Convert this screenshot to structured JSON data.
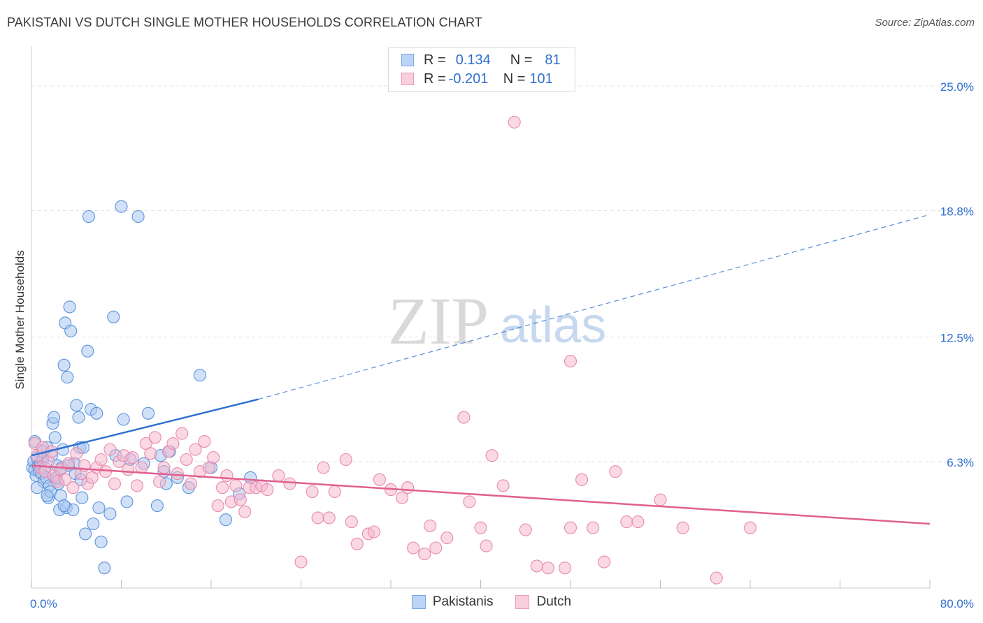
{
  "header": {
    "title": "PAKISTANI VS DUTCH SINGLE MOTHER HOUSEHOLDS CORRELATION CHART",
    "source": "Source: ZipAtlas.com"
  },
  "watermark": {
    "zip": "ZIP",
    "atlas": "atlas"
  },
  "legend": {
    "rows": [
      {
        "r_label": "R =",
        "r_value": "0.134",
        "n_label": "N =",
        "n_value": "81"
      },
      {
        "r_label": "R =",
        "r_value": "-0.201",
        "n_label": "N =",
        "n_value": "101"
      }
    ]
  },
  "bottom_legend": {
    "items": [
      "Pakistanis",
      "Dutch"
    ]
  },
  "colors": {
    "blue": "#2f6fd0",
    "blue_fill": "#a9c7f0",
    "pink": "#e0608f",
    "pink_fill": "#f5b8cd",
    "grid": "#e3e3e3"
  },
  "chart_data": {
    "type": "scatter",
    "title": "PAKISTANI VS DUTCH SINGLE MOTHER HOUSEHOLDS CORRELATION CHART",
    "xlabel": "",
    "ylabel": "Single Mother Households",
    "xlim": [
      0,
      80
    ],
    "ylim": [
      0,
      26.5
    ],
    "x_tick_labels": [
      "0.0%",
      "80.0%"
    ],
    "y_ticks": [
      6.3,
      12.5,
      18.8,
      25.0
    ],
    "y_tick_labels": [
      "6.3%",
      "12.5%",
      "18.8%",
      "25.0%"
    ],
    "series": [
      {
        "name": "Pakistanis",
        "r": 0.134,
        "n": 81,
        "trend": {
          "x0": 0,
          "y0": 6.6,
          "x1": 20.2,
          "y1": 9.4,
          "dash_x1": 80,
          "dash_y1": 18.6
        },
        "points": [
          [
            0.1,
            6.0
          ],
          [
            0.2,
            6.3
          ],
          [
            0.3,
            5.9
          ],
          [
            0.4,
            5.6
          ],
          [
            0.5,
            6.5
          ],
          [
            0.6,
            6.1
          ],
          [
            0.7,
            5.8
          ],
          [
            0.8,
            6.2
          ],
          [
            0.9,
            5.7
          ],
          [
            1.0,
            6.4
          ],
          [
            1.1,
            5.3
          ],
          [
            1.2,
            6.0
          ],
          [
            1.3,
            5.5
          ],
          [
            1.4,
            7.0
          ],
          [
            1.5,
            4.5
          ],
          [
            1.6,
            5.1
          ],
          [
            1.7,
            4.8
          ],
          [
            1.8,
            6.6
          ],
          [
            1.9,
            8.2
          ],
          [
            2.0,
            8.5
          ],
          [
            2.1,
            7.5
          ],
          [
            2.2,
            5.4
          ],
          [
            2.3,
            6.1
          ],
          [
            2.4,
            5.2
          ],
          [
            2.5,
            3.9
          ],
          [
            2.6,
            4.6
          ],
          [
            2.7,
            6.0
          ],
          [
            2.8,
            6.9
          ],
          [
            2.9,
            11.1
          ],
          [
            3.0,
            13.2
          ],
          [
            3.1,
            4.0
          ],
          [
            3.2,
            10.5
          ],
          [
            3.4,
            14.0
          ],
          [
            3.5,
            12.8
          ],
          [
            3.7,
            3.9
          ],
          [
            3.8,
            6.2
          ],
          [
            4.0,
            9.1
          ],
          [
            4.2,
            8.5
          ],
          [
            4.3,
            7.0
          ],
          [
            4.5,
            4.5
          ],
          [
            4.6,
            7.0
          ],
          [
            4.8,
            2.7
          ],
          [
            5.0,
            11.8
          ],
          [
            5.1,
            18.5
          ],
          [
            5.3,
            8.9
          ],
          [
            5.5,
            3.2
          ],
          [
            5.8,
            8.7
          ],
          [
            6.0,
            4.0
          ],
          [
            6.2,
            2.3
          ],
          [
            6.5,
            1.0
          ],
          [
            7.0,
            3.7
          ],
          [
            7.3,
            13.5
          ],
          [
            7.5,
            6.6
          ],
          [
            8.0,
            19.0
          ],
          [
            8.2,
            8.4
          ],
          [
            8.5,
            4.3
          ],
          [
            8.8,
            6.4
          ],
          [
            9.5,
            18.5
          ],
          [
            10.0,
            6.2
          ],
          [
            10.4,
            8.7
          ],
          [
            11.2,
            4.1
          ],
          [
            11.5,
            6.6
          ],
          [
            11.8,
            5.8
          ],
          [
            12.0,
            5.2
          ],
          [
            12.3,
            6.8
          ],
          [
            13.0,
            5.5
          ],
          [
            14.0,
            5.0
          ],
          [
            15.0,
            10.6
          ],
          [
            16.0,
            6.0
          ],
          [
            17.3,
            3.4
          ],
          [
            18.5,
            4.7
          ],
          [
            19.5,
            5.5
          ],
          [
            0.3,
            7.3
          ],
          [
            0.5,
            5.0
          ],
          [
            1.0,
            6.8
          ],
          [
            1.4,
            4.6
          ],
          [
            2.2,
            5.5
          ],
          [
            2.9,
            4.1
          ],
          [
            3.3,
            6.1
          ],
          [
            3.9,
            5.7
          ],
          [
            4.4,
            5.4
          ]
        ]
      },
      {
        "name": "Dutch",
        "r": -0.201,
        "n": 101,
        "trend": {
          "x0": 0,
          "y0": 6.1,
          "x1": 80,
          "y1": 3.2
        },
        "points": [
          [
            0.3,
            7.2
          ],
          [
            0.5,
            6.6
          ],
          [
            0.8,
            6.0
          ],
          [
            1.0,
            7.0
          ],
          [
            1.2,
            5.8
          ],
          [
            1.5,
            6.3
          ],
          [
            1.8,
            6.8
          ],
          [
            2.0,
            5.6
          ],
          [
            2.3,
            5.3
          ],
          [
            2.6,
            5.9
          ],
          [
            3.0,
            5.4
          ],
          [
            3.3,
            6.2
          ],
          [
            3.7,
            5.0
          ],
          [
            4.0,
            6.7
          ],
          [
            4.4,
            5.7
          ],
          [
            4.7,
            6.1
          ],
          [
            5.0,
            5.2
          ],
          [
            5.4,
            5.5
          ],
          [
            5.8,
            6.0
          ],
          [
            6.2,
            6.4
          ],
          [
            6.6,
            5.8
          ],
          [
            7.0,
            6.9
          ],
          [
            7.4,
            5.2
          ],
          [
            7.8,
            6.3
          ],
          [
            8.2,
            6.6
          ],
          [
            8.6,
            5.9
          ],
          [
            9.0,
            6.5
          ],
          [
            9.4,
            5.1
          ],
          [
            9.8,
            6.0
          ],
          [
            10.2,
            7.2
          ],
          [
            10.6,
            6.7
          ],
          [
            11.0,
            7.5
          ],
          [
            11.4,
            5.3
          ],
          [
            11.8,
            6.0
          ],
          [
            12.2,
            6.8
          ],
          [
            12.6,
            7.2
          ],
          [
            13.0,
            5.7
          ],
          [
            13.4,
            7.7
          ],
          [
            13.8,
            6.4
          ],
          [
            14.2,
            5.2
          ],
          [
            14.6,
            6.9
          ],
          [
            15.0,
            5.8
          ],
          [
            15.4,
            7.3
          ],
          [
            15.8,
            6.0
          ],
          [
            16.2,
            6.5
          ],
          [
            16.6,
            4.1
          ],
          [
            17.0,
            5.0
          ],
          [
            17.4,
            5.6
          ],
          [
            17.8,
            4.3
          ],
          [
            18.2,
            5.1
          ],
          [
            18.6,
            4.4
          ],
          [
            19.0,
            3.8
          ],
          [
            19.4,
            5.0
          ],
          [
            20.0,
            5.0
          ],
          [
            20.5,
            5.1
          ],
          [
            21.0,
            4.9
          ],
          [
            22.0,
            5.6
          ],
          [
            23.0,
            5.2
          ],
          [
            24.0,
            1.3
          ],
          [
            25.0,
            4.8
          ],
          [
            25.5,
            3.5
          ],
          [
            26.0,
            6.0
          ],
          [
            26.5,
            3.5
          ],
          [
            27.0,
            4.8
          ],
          [
            28.0,
            6.4
          ],
          [
            28.5,
            3.3
          ],
          [
            29.0,
            2.2
          ],
          [
            30.0,
            2.7
          ],
          [
            30.5,
            2.8
          ],
          [
            31.0,
            5.4
          ],
          [
            32.0,
            4.9
          ],
          [
            33.0,
            4.5
          ],
          [
            33.5,
            5.0
          ],
          [
            34.0,
            2.0
          ],
          [
            35.0,
            1.7
          ],
          [
            35.5,
            3.1
          ],
          [
            36.0,
            2.0
          ],
          [
            37.0,
            2.5
          ],
          [
            38.5,
            8.5
          ],
          [
            39.0,
            4.3
          ],
          [
            40.0,
            3.0
          ],
          [
            40.5,
            2.1
          ],
          [
            41.0,
            6.6
          ],
          [
            42.0,
            5.1
          ],
          [
            43.0,
            23.2
          ],
          [
            44.0,
            2.9
          ],
          [
            45.0,
            1.1
          ],
          [
            46.0,
            1.0
          ],
          [
            47.5,
            1.0
          ],
          [
            48.0,
            3.0
          ],
          [
            49.0,
            5.4
          ],
          [
            50.0,
            3.0
          ],
          [
            51.0,
            1.3
          ],
          [
            52.0,
            5.8
          ],
          [
            53.0,
            3.3
          ],
          [
            54.0,
            3.3
          ],
          [
            56.0,
            4.4
          ],
          [
            58.0,
            3.0
          ],
          [
            61.0,
            0.5
          ],
          [
            64.0,
            3.0
          ],
          [
            48.0,
            11.3
          ]
        ]
      }
    ]
  }
}
